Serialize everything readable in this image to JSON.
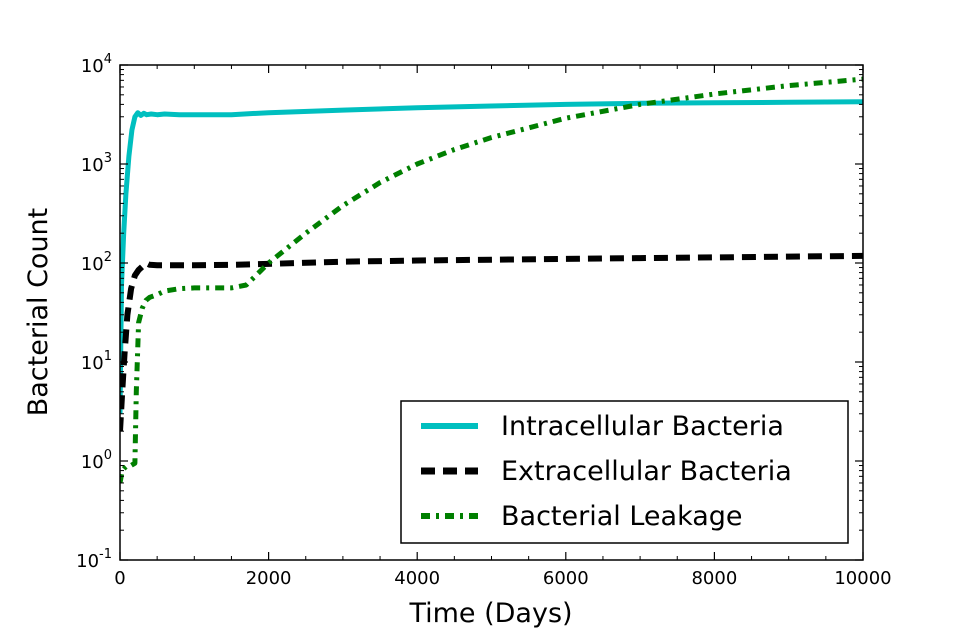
{
  "chart_data": {
    "type": "line",
    "xlabel": "Time (Days)",
    "ylabel": "Bacterial Count",
    "xlim": [
      0,
      10000
    ],
    "ylim": [
      0.1,
      10000
    ],
    "yscale": "log",
    "x_ticks": [
      "0",
      "2000",
      "4000",
      "6000",
      "8000",
      "10000"
    ],
    "x_tick_values": [
      0,
      2000,
      4000,
      6000,
      8000,
      10000
    ],
    "y_ticks": [
      {
        "value": 0.1,
        "base": "10",
        "exp": "-1"
      },
      {
        "value": 1,
        "base": "10",
        "exp": "0"
      },
      {
        "value": 10,
        "base": "10",
        "exp": "1"
      },
      {
        "value": 100,
        "base": "10",
        "exp": "2"
      },
      {
        "value": 1000,
        "base": "10",
        "exp": "3"
      },
      {
        "value": 10000,
        "base": "10",
        "exp": "4"
      }
    ],
    "grid": false,
    "legend_position": "lower-right",
    "series": [
      {
        "name": "Intracellular Bacteria",
        "color": "#00bfbf",
        "style": "solid",
        "x": [
          0,
          20,
          50,
          80,
          120,
          160,
          200,
          240,
          280,
          320,
          360,
          420,
          500,
          600,
          800,
          1000,
          1500,
          2000,
          3000,
          4000,
          5000,
          6000,
          7000,
          8000,
          9000,
          10000
        ],
        "y": [
          3,
          60,
          200,
          500,
          1200,
          2200,
          3000,
          3300,
          3100,
          3250,
          3150,
          3200,
          3150,
          3200,
          3150,
          3150,
          3150,
          3300,
          3500,
          3700,
          3850,
          4000,
          4100,
          4150,
          4200,
          4250
        ]
      },
      {
        "name": "Extracellular Bacteria",
        "color": "#000000",
        "style": "dashed",
        "x": [
          0,
          30,
          60,
          100,
          150,
          200,
          250,
          300,
          350,
          400,
          500,
          700,
          1000,
          1500,
          2000,
          3000,
          4000,
          5000,
          6000,
          7000,
          8000,
          9000,
          10000
        ],
        "y": [
          2,
          5,
          12,
          30,
          55,
          75,
          85,
          92,
          100,
          96,
          95,
          95,
          95,
          96,
          98,
          103,
          106,
          108,
          110,
          112,
          114,
          116,
          118
        ]
      },
      {
        "name": "Bacterial Leakage",
        "color": "#007f00",
        "style": "dashdot",
        "x": [
          0,
          30,
          60,
          100,
          150,
          200,
          220,
          250,
          300,
          350,
          400,
          500,
          600,
          800,
          1000,
          1200,
          1500,
          1700,
          2000,
          2500,
          3000,
          3500,
          4000,
          4500,
          5000,
          6000,
          7000,
          8000,
          9000,
          10000
        ],
        "y": [
          0.6,
          0.8,
          0.85,
          0.9,
          0.9,
          0.95,
          5,
          25,
          35,
          42,
          45,
          48,
          52,
          55,
          56,
          56,
          56,
          60,
          100,
          200,
          380,
          650,
          1000,
          1400,
          1850,
          2900,
          4000,
          5100,
          6200,
          7200
        ]
      }
    ]
  }
}
